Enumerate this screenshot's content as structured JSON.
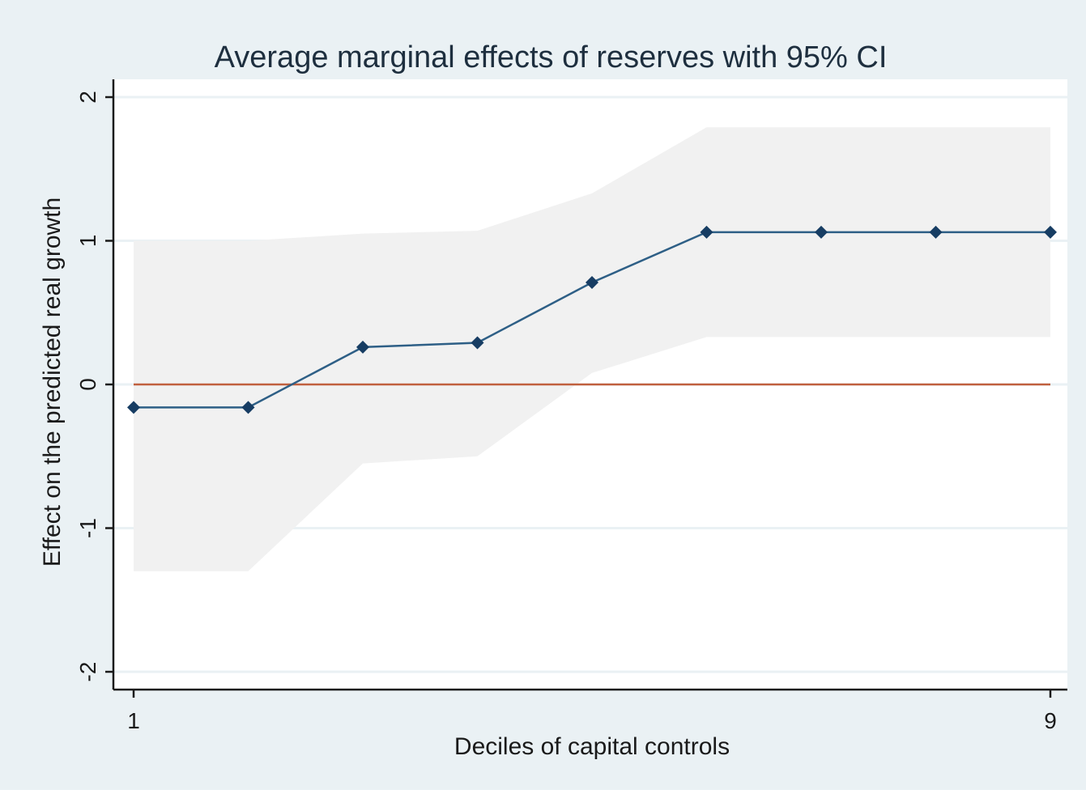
{
  "chart_data": {
    "type": "line",
    "title": "Average marginal effects of reserves with 95% CI",
    "xlabel": "Deciles of capital controls",
    "ylabel": "Effect on the predicted real growth",
    "x": [
      1,
      2,
      3,
      4,
      5,
      6,
      7,
      8,
      9
    ],
    "x_tick_labels": [
      "1",
      "9"
    ],
    "y_tick_labels": [
      "-2",
      "-1",
      "0",
      "1",
      "2"
    ],
    "xlim": [
      1,
      9
    ],
    "ylim": [
      -2,
      2
    ],
    "series": [
      {
        "values": [
          -0.16,
          -0.16,
          0.26,
          0.29,
          0.71,
          1.06,
          1.06,
          1.06,
          1.06
        ],
        "ci_lower": [
          -1.3,
          -1.3,
          -0.55,
          -0.5,
          0.08,
          0.33,
          0.33,
          0.33,
          0.33
        ],
        "ci_upper": [
          1.0,
          1.0,
          1.05,
          1.07,
          1.33,
          1.79,
          1.79,
          1.79,
          1.79
        ]
      }
    ],
    "reference_line_y": 0,
    "grid": true,
    "colors": {
      "outer_background": "#eaf1f4",
      "plot_background": "#ffffff",
      "ci_band": "#f1f1f1",
      "line": "#2e5f86",
      "marker": "#173d63",
      "reference_line": "#c0603e",
      "axis": "#1a1a1a",
      "gridline": "#eaf1f4"
    }
  }
}
